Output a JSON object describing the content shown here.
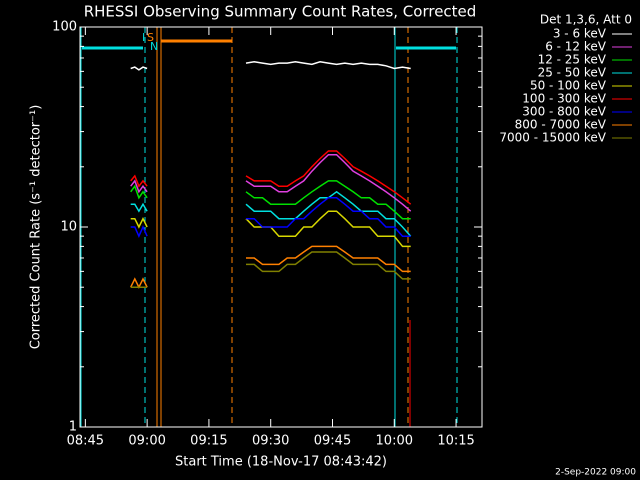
{
  "chart_data": {
    "type": "line",
    "title": "RHESSI Observing Summary Count Rates, Corrected",
    "legend_title": "Det 1,3,6, Att 0",
    "xlabel": "Start Time (18-Nov-17 08:43:42)",
    "ylabel": "Corrected Count Rate (s⁻¹ detector⁻¹)",
    "footer": "2-Sep-2022 09:00",
    "annotations": [
      "I",
      "S",
      "N"
    ],
    "log_y": true,
    "xlim": [
      "08:43:42",
      "10:21:18"
    ],
    "xticks": [
      "08:45",
      "09:00",
      "09:15",
      "09:30",
      "09:45",
      "10:00",
      "10:15"
    ],
    "ylim": [
      1,
      100
    ],
    "yticks": [
      1,
      10,
      100
    ],
    "x": [
      "08:56",
      "08:57",
      "08:58",
      "08:59",
      "09:00",
      "09:10",
      "09:24",
      "09:26",
      "09:28",
      "09:30",
      "09:32",
      "09:34",
      "09:36",
      "09:38",
      "09:40",
      "09:42",
      "09:44",
      "09:46",
      "09:48",
      "09:50",
      "09:52",
      "09:54",
      "09:56",
      "09:58",
      "10:00",
      "10:02",
      "10:04"
    ],
    "series": [
      {
        "name": "3 - 6 keV",
        "color": "#000000",
        "values": [
          62,
          63,
          61,
          63,
          62,
          null,
          66,
          67,
          66,
          65,
          66,
          66,
          67,
          66,
          65,
          67,
          66,
          65,
          66,
          65,
          66,
          65,
          65,
          64,
          62,
          63,
          62
        ]
      },
      {
        "name": "6 - 12 keV",
        "color": "#e040e0",
        "values": [
          16,
          17,
          15,
          16,
          15,
          null,
          17,
          16,
          16,
          16,
          15,
          15,
          16,
          17,
          19,
          21,
          23,
          23,
          21,
          19,
          18,
          17,
          16,
          15,
          14,
          13,
          12
        ]
      },
      {
        "name": "12 - 25 keV",
        "color": "#00e000",
        "values": [
          15,
          16,
          14,
          15,
          14,
          null,
          15,
          14,
          14,
          13,
          13,
          13,
          13,
          14,
          15,
          16,
          17,
          17,
          16,
          15,
          14,
          14,
          13,
          13,
          12,
          11,
          11
        ]
      },
      {
        "name": "25 - 50 keV",
        "color": "#00e0e0",
        "values": [
          13,
          13,
          12,
          13,
          12,
          null,
          13,
          12,
          12,
          12,
          11,
          11,
          11,
          12,
          13,
          14,
          14,
          15,
          14,
          13,
          12,
          12,
          12,
          11,
          11,
          10,
          9
        ]
      },
      {
        "name": "50 - 100 keV",
        "color": "#d8d800",
        "values": [
          11,
          11,
          10,
          11,
          10,
          null,
          11,
          10,
          10,
          10,
          9,
          9,
          9,
          10,
          10,
          11,
          12,
          12,
          11,
          10,
          10,
          10,
          9,
          9,
          9,
          8,
          8
        ]
      },
      {
        "name": "100 - 300 keV",
        "color": "#ff0000",
        "values": [
          17,
          18,
          16,
          17,
          16,
          null,
          18,
          17,
          17,
          17,
          16,
          16,
          17,
          18,
          20,
          22,
          24,
          24,
          22,
          20,
          19,
          18,
          17,
          16,
          15,
          14,
          13
        ]
      },
      {
        "name": "300 - 800 keV",
        "color": "#0000ff",
        "values": [
          10,
          10,
          9,
          10,
          9,
          null,
          11,
          11,
          10,
          10,
          10,
          10,
          11,
          11,
          12,
          13,
          14,
          14,
          13,
          12,
          12,
          11,
          11,
          10,
          10,
          9,
          9
        ]
      },
      {
        "name": "800 - 7000 keV",
        "color": "#ff8000",
        "values": [
          5,
          5.5,
          5,
          5.5,
          5,
          null,
          7,
          7,
          6.5,
          6.5,
          6.5,
          7,
          7,
          7.5,
          8,
          8,
          8,
          8,
          7.5,
          7,
          7,
          7,
          7,
          6.5,
          6.5,
          6,
          6
        ]
      },
      {
        "name": "7000 - 15000 keV",
        "color": "#808000",
        "values": [
          5,
          5,
          5,
          5,
          5,
          null,
          6.5,
          6.5,
          6,
          6,
          6,
          6.5,
          6.5,
          7,
          7.5,
          7.5,
          7.5,
          7.5,
          7,
          6.5,
          6.5,
          6.5,
          6.5,
          6,
          6,
          5.5,
          5.5
        ]
      }
    ]
  }
}
